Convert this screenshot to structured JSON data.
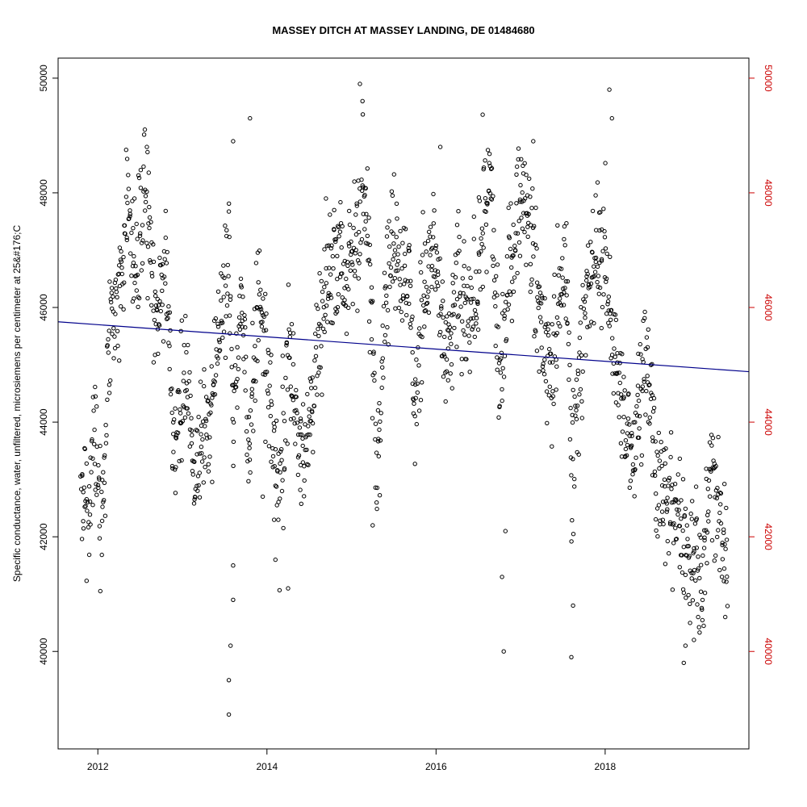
{
  "chart_data": {
    "type": "scatter",
    "title": "MASSEY DITCH AT MASSEY LANDING, DE 01484680",
    "ylabel": "Specific conductance, water, unfiltered, microsiemens per centimeter at 25&#176;C",
    "xlabel": "",
    "x_ticks": [
      "2012",
      "2014",
      "2016",
      "2018"
    ],
    "y_ticks": [
      "40000",
      "42000",
      "44000",
      "46000",
      "48000",
      "50000"
    ],
    "right_y_ticks": [
      "40000",
      "42000",
      "44000",
      "46000",
      "48000",
      "50000"
    ],
    "xlim": [
      2011.53,
      2019.7
    ],
    "ylim": [
      38300,
      50350
    ],
    "grid": false,
    "colors": {
      "points": "#000000",
      "trend": "#00008b",
      "right_axis": "#cc0000",
      "left_axis": "#000000"
    },
    "trend_line": {
      "x": [
        2011.53,
        2019.7
      ],
      "y": [
        45750,
        44880
      ]
    },
    "segments": [
      [
        2011.8,
        43200
      ],
      [
        2011.9,
        42300
      ],
      [
        2011.95,
        43900
      ],
      [
        2012.05,
        42100
      ],
      [
        2012.15,
        45800
      ],
      [
        2012.25,
        46100
      ],
      [
        2012.35,
        47800
      ],
      [
        2012.45,
        46600
      ],
      [
        2012.55,
        48000
      ],
      [
        2012.6,
        47500
      ],
      [
        2012.7,
        45400
      ],
      [
        2012.8,
        47100
      ],
      [
        2012.9,
        43600
      ],
      [
        2013.05,
        44900
      ],
      [
        2013.15,
        42800
      ],
      [
        2013.25,
        43800
      ],
      [
        2013.35,
        44600
      ],
      [
        2013.45,
        45900
      ],
      [
        2013.55,
        46800
      ],
      [
        2013.6,
        44100
      ],
      [
        2013.7,
        46100
      ],
      [
        2013.8,
        43300
      ],
      [
        2013.9,
        46500
      ],
      [
        2014.05,
        44200
      ],
      [
        2014.15,
        42500
      ],
      [
        2014.25,
        45600
      ],
      [
        2014.35,
        44000
      ],
      [
        2014.45,
        43600
      ],
      [
        2014.55,
        44500
      ],
      [
        2014.65,
        45700
      ],
      [
        2014.75,
        46700
      ],
      [
        2014.85,
        47100
      ],
      [
        2014.95,
        46300
      ],
      [
        2015.05,
        47300
      ],
      [
        2015.15,
        48200
      ],
      [
        2015.25,
        45400
      ],
      [
        2015.3,
        43200
      ],
      [
        2015.4,
        46400
      ],
      [
        2015.5,
        47200
      ],
      [
        2015.6,
        46700
      ],
      [
        2015.7,
        46200
      ],
      [
        2015.75,
        43900
      ],
      [
        2015.85,
        46500
      ],
      [
        2015.95,
        47200
      ],
      [
        2016.05,
        46000
      ],
      [
        2016.15,
        45000
      ],
      [
        2016.25,
        46600
      ],
      [
        2016.35,
        45600
      ],
      [
        2016.45,
        46100
      ],
      [
        2016.55,
        47500
      ],
      [
        2016.65,
        48200
      ],
      [
        2016.75,
        44600
      ],
      [
        2016.85,
        46300
      ],
      [
        2016.95,
        47600
      ],
      [
        2017.05,
        48100
      ],
      [
        2017.15,
        46900
      ],
      [
        2017.25,
        45600
      ],
      [
        2017.35,
        44800
      ],
      [
        2017.45,
        45900
      ],
      [
        2017.55,
        46700
      ],
      [
        2017.6,
        43200
      ],
      [
        2017.7,
        45100
      ],
      [
        2017.8,
        46100
      ],
      [
        2017.9,
        47100
      ],
      [
        2018.0,
        46900
      ],
      [
        2018.1,
        45300
      ],
      [
        2018.2,
        44200
      ],
      [
        2018.3,
        43300
      ],
      [
        2018.4,
        44400
      ],
      [
        2018.5,
        45300
      ],
      [
        2018.6,
        43200
      ],
      [
        2018.7,
        42600
      ],
      [
        2018.85,
        42400
      ],
      [
        2018.95,
        41600
      ],
      [
        2019.05,
        42000
      ],
      [
        2019.15,
        41200
      ],
      [
        2019.25,
        43300
      ],
      [
        2019.35,
        42200
      ],
      [
        2019.45,
        41600
      ]
    ],
    "extremes": [
      [
        2013.55,
        38900
      ],
      [
        2013.55,
        39500
      ],
      [
        2013.57,
        40100
      ],
      [
        2013.6,
        40900
      ],
      [
        2013.6,
        41500
      ],
      [
        2013.95,
        42700
      ],
      [
        2014.1,
        41600
      ],
      [
        2014.25,
        41100
      ],
      [
        2015.1,
        49900
      ],
      [
        2015.13,
        49600
      ],
      [
        2015.25,
        42200
      ],
      [
        2016.05,
        48800
      ],
      [
        2016.8,
        40000
      ],
      [
        2016.78,
        41300
      ],
      [
        2016.82,
        42100
      ],
      [
        2017.6,
        39900
      ],
      [
        2017.62,
        40800
      ],
      [
        2018.05,
        49800
      ],
      [
        2018.08,
        49300
      ],
      [
        2018.93,
        39800
      ],
      [
        2018.95,
        40100
      ],
      [
        2019.05,
        40200
      ],
      [
        2019.1,
        40600
      ],
      [
        2019.42,
        40600
      ],
      [
        2013.6,
        48900
      ],
      [
        2013.8,
        49300
      ],
      [
        2012.58,
        48800
      ],
      [
        2017.15,
        48900
      ]
    ]
  }
}
